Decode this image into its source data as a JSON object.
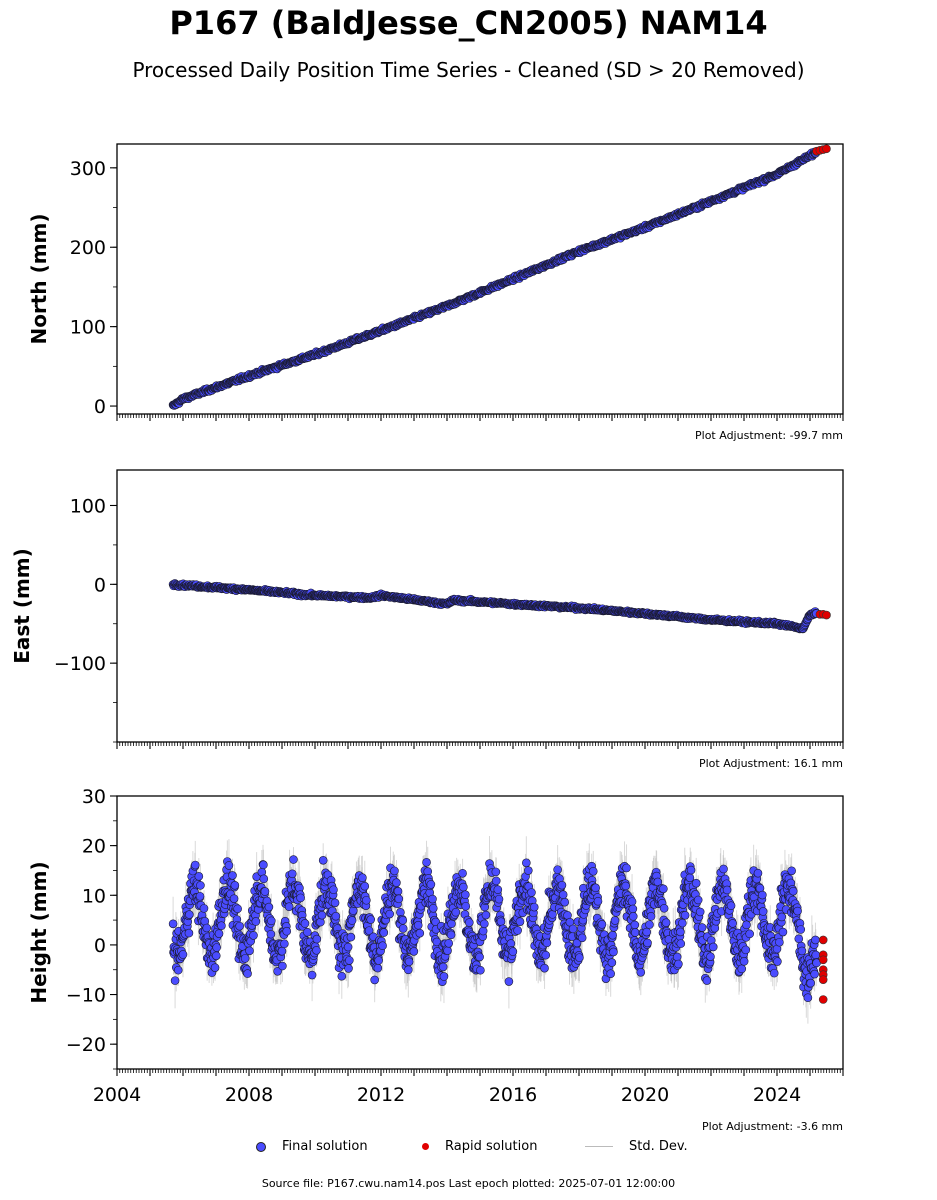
{
  "title": "P167 (BaldJesse_CN2005) NAM14",
  "subtitle": "Processed Daily Position Time Series - Cleaned (SD > 20 Removed)",
  "colors": {
    "final": "#4a4cff",
    "rapid": "#e00000",
    "std": "#bbbbbb",
    "outline": "#1a1a2e"
  },
  "legend": {
    "final": "Final solution",
    "rapid": "Rapid solution",
    "std": "Std. Dev."
  },
  "footer": "Source file: P167.cwu.nam14.pos  Last epoch plotted: 2025-07-01 12:00:00",
  "chart_data": [
    {
      "type": "scatter",
      "ylabel": "North (mm)",
      "adjustment": "Plot Adjustment: -99.7 mm",
      "xlim": [
        2004,
        2026
      ],
      "ylim": [
        -10,
        330
      ],
      "yticks": [
        0,
        100,
        200,
        300
      ],
      "xticks": [],
      "grid": false,
      "final": {
        "x": [
          2005.7,
          2006.0,
          2008.0,
          2010.0,
          2012.0,
          2014.0,
          2016.0,
          2018.0,
          2020.0,
          2022.0,
          2024.0,
          2025.2
        ],
        "y": [
          0,
          9,
          38,
          65,
          95,
          126,
          160,
          195,
          225,
          258,
          292,
          320
        ]
      },
      "rapid": {
        "x": [
          2025.2,
          2025.3,
          2025.4,
          2025.5
        ],
        "y": [
          321,
          322,
          323,
          324
        ]
      }
    },
    {
      "type": "scatter",
      "ylabel": "East (mm)",
      "adjustment": "Plot Adjustment: 16.1 mm",
      "xlim": [
        2004,
        2026
      ],
      "ylim": [
        -200,
        145
      ],
      "yticks": [
        100,
        0,
        -100
      ],
      "ytick_labels": [
        "100",
        "0",
        "−100"
      ],
      "xticks": [],
      "grid": false,
      "final": {
        "x": [
          2005.7,
          2008.0,
          2010.0,
          2011.7,
          2012.0,
          2014.0,
          2014.2,
          2016.0,
          2018.0,
          2020.0,
          2022.0,
          2024.0,
          2024.8,
          2025.0,
          2025.2
        ],
        "y": [
          0,
          -7,
          -14,
          -17,
          -14,
          -25,
          -20,
          -25,
          -30,
          -37,
          -45,
          -50,
          -56,
          -38,
          -37
        ]
      },
      "rapid": {
        "x": [
          2025.3,
          2025.4,
          2025.5
        ],
        "y": [
          -38,
          -38,
          -39
        ]
      }
    },
    {
      "type": "scatter",
      "ylabel": "Height (mm)",
      "adjustment": "Plot Adjustment: -3.6 mm",
      "xlim": [
        2004,
        2026
      ],
      "ylim": [
        -25,
        30
      ],
      "yticks": [
        30,
        20,
        10,
        0,
        -10,
        -20
      ],
      "ytick_labels": [
        "30",
        "20",
        "10",
        "0",
        "−10",
        "−20"
      ],
      "xticks": [
        2004,
        2008,
        2012,
        2016,
        2020,
        2024
      ],
      "grid": false,
      "series_note": "Seasonal oscillation about ~5 mm with amplitude ~7 mm, scatter ~4 mm; 2025 dips to about -15 mm",
      "final": {
        "x": [
          2005.7,
          2025.2
        ],
        "y_mean": 5,
        "seasonal_amplitude": 7,
        "noise": 4,
        "std_dev": 4
      },
      "rapid": {
        "x": [
          2025.4,
          2025.4,
          2025.4,
          2025.4,
          2025.4,
          2025.4,
          2025.4
        ],
        "y": [
          1,
          -2,
          -3,
          -5,
          -6,
          -7,
          -11
        ]
      }
    }
  ]
}
